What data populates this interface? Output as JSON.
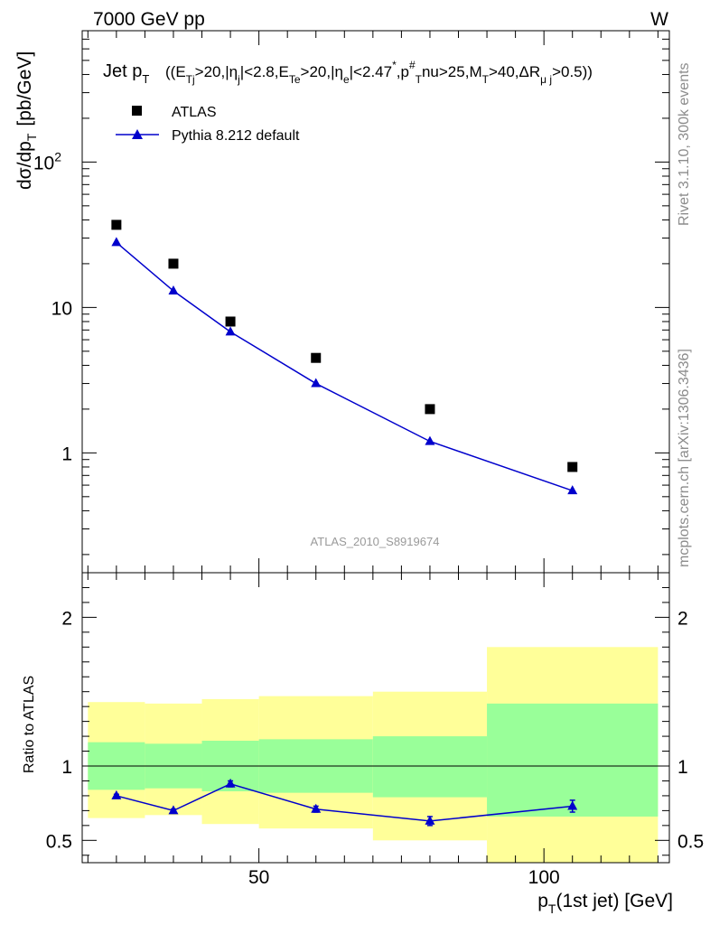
{
  "header": {
    "left": "7000 GeV pp",
    "right": "W"
  },
  "side_labels": {
    "rivet": "Rivet 3.1.10,  300k events",
    "mcplots": "mcplots.cern.ch [arXiv:1306.3436]"
  },
  "colors": {
    "mc": "#0000cc",
    "data": "#000000",
    "band_outer": "#ffff99",
    "band_inner": "#99ff99"
  },
  "chart_data": [
    {
      "type": "scatter",
      "title": {
        "main": "Jet p",
        "main_sub": "T",
        "cuts": "((E",
        "parts": [
          {
            "t": "((E"
          },
          {
            "t": "Tj",
            "s": "sub"
          },
          {
            "t": ">20,|η"
          },
          {
            "t": "j",
            "s": "sub"
          },
          {
            "t": "|<2.8,E"
          },
          {
            "t": "Te",
            "s": "sub"
          },
          {
            "t": ">20,|η"
          },
          {
            "t": "e",
            "s": "sub"
          },
          {
            "t": "|<2.47"
          },
          {
            "t": "*",
            "s": "sup"
          },
          {
            "t": ",p"
          },
          {
            "t": "#",
            "s": "sup"
          },
          {
            "t": "T",
            "s": "sub"
          },
          {
            "t": "nu>25,M"
          },
          {
            "t": "T",
            "s": "sub"
          },
          {
            "t": ">40,ΔR"
          },
          {
            "t": "μ j",
            "s": "sub"
          },
          {
            "t": ">0.5))"
          }
        ]
      },
      "ylabel": "dσ/dp",
      "ylabel_sub": "T",
      "ylabel_unit": "[pb/GeV]",
      "yscale": "log",
      "ylim": [
        0.15,
        800
      ],
      "xlim": [
        19,
        122
      ],
      "yticks": [
        {
          "v": 1,
          "label": "1"
        },
        {
          "v": 10,
          "label": "10"
        },
        {
          "v": 100,
          "label": "10",
          "sup": "2"
        }
      ],
      "analysis_label": "ATLAS_2010_S8919674",
      "legend": [
        {
          "label": "ATLAS",
          "marker": "square"
        },
        {
          "label": "Pythia 8.212 default",
          "marker": "triangle"
        }
      ],
      "series": [
        {
          "name": "ATLAS",
          "x": [
            25,
            35,
            45,
            60,
            80,
            105
          ],
          "y": [
            37,
            20,
            8,
            4.5,
            2,
            0.8
          ]
        },
        {
          "name": "Pythia 8.212 default",
          "x": [
            25,
            35,
            45,
            60,
            80,
            105
          ],
          "y": [
            28,
            13,
            6.8,
            3.0,
            1.2,
            0.55
          ]
        }
      ]
    },
    {
      "type": "line",
      "ylabel": "Ratio to ATLAS",
      "ylim": [
        0.35,
        2.3
      ],
      "xlim": [
        19,
        122
      ],
      "yticks": [
        {
          "v": 0.5,
          "label": "0.5"
        },
        {
          "v": 1,
          "label": "1"
        },
        {
          "v": 2,
          "label": "2"
        }
      ],
      "xticks": [
        {
          "v": 50,
          "label": "50"
        },
        {
          "v": 100,
          "label": "100"
        }
      ],
      "xlabel": "p",
      "xlabel_sub": "T",
      "xlabel_rest": "(1st jet) [GeV]",
      "bands": [
        {
          "x0": 20,
          "x1": 30,
          "outer": [
            0.65,
            1.43
          ],
          "inner": [
            0.84,
            1.16
          ]
        },
        {
          "x0": 30,
          "x1": 40,
          "outer": [
            0.67,
            1.42
          ],
          "inner": [
            0.85,
            1.15
          ]
        },
        {
          "x0": 40,
          "x1": 50,
          "outer": [
            0.61,
            1.45
          ],
          "inner": [
            0.83,
            1.17
          ]
        },
        {
          "x0": 50,
          "x1": 70,
          "outer": [
            0.58,
            1.47
          ],
          "inner": [
            0.82,
            1.18
          ]
        },
        {
          "x0": 70,
          "x1": 90,
          "outer": [
            0.5,
            1.5
          ],
          "inner": [
            0.79,
            1.2
          ]
        },
        {
          "x0": 90,
          "x1": 120,
          "outer": [
            0.35,
            1.8
          ],
          "inner": [
            0.66,
            1.42
          ]
        }
      ],
      "series": [
        {
          "name": "Pythia 8.212 default",
          "x": [
            25,
            35,
            45,
            60,
            80,
            105
          ],
          "y": [
            0.8,
            0.7,
            0.88,
            0.71,
            0.63,
            0.73
          ],
          "err": [
            0.01,
            0.01,
            0.02,
            0.02,
            0.03,
            0.04
          ]
        }
      ]
    }
  ]
}
